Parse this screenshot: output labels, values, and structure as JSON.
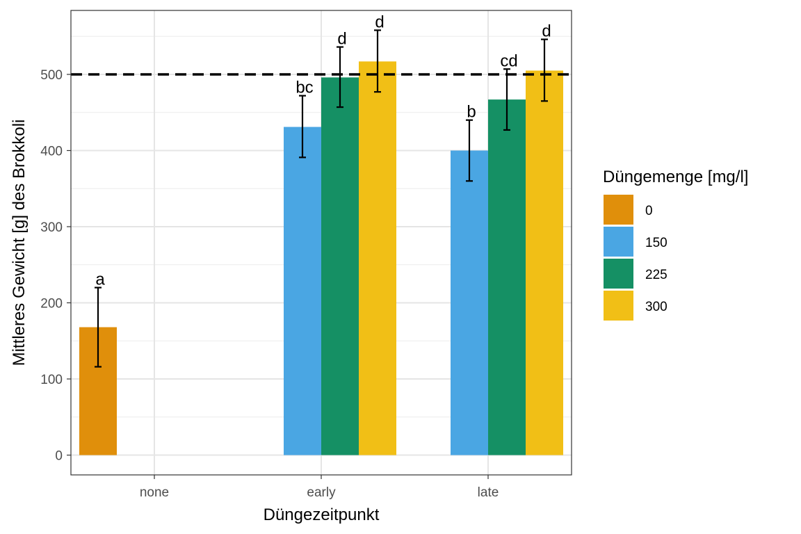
{
  "chart_data": {
    "type": "bar",
    "xlabel": "Düngezeitpunkt",
    "ylabel": "Mittleres Gewicht [g] des Brokkoli",
    "categories": [
      "none",
      "early",
      "late"
    ],
    "ylim": [
      -26,
      584
    ],
    "yticks": [
      0,
      100,
      200,
      300,
      400,
      500
    ],
    "grid": true,
    "reference_line": {
      "y": 500,
      "style": "dashed"
    },
    "legend": {
      "title": "Düngemenge [mg/l]",
      "position": "right",
      "entries": [
        "0",
        "150",
        "225",
        "300"
      ]
    },
    "colors": {
      "0": "#E08F0B",
      "150": "#4AA6E3",
      "225": "#159064",
      "300": "#F1BF16"
    },
    "bars": [
      {
        "category": "none",
        "group": "0",
        "value": 168,
        "err_low": 116,
        "err_high": 220,
        "label": "a"
      },
      {
        "category": "early",
        "group": "150",
        "value": 431,
        "err_low": 391,
        "err_high": 472,
        "label": "bc"
      },
      {
        "category": "early",
        "group": "225",
        "value": 496,
        "err_low": 457,
        "err_high": 536,
        "label": "d"
      },
      {
        "category": "early",
        "group": "300",
        "value": 517,
        "err_low": 477,
        "err_high": 558,
        "label": "d"
      },
      {
        "category": "late",
        "group": "150",
        "value": 400,
        "err_low": 360,
        "err_high": 440,
        "label": "b"
      },
      {
        "category": "late",
        "group": "225",
        "value": 467,
        "err_low": 427,
        "err_high": 507,
        "label": "cd"
      },
      {
        "category": "late",
        "group": "300",
        "value": 505,
        "err_low": 465,
        "err_high": 546,
        "label": "d"
      }
    ]
  }
}
